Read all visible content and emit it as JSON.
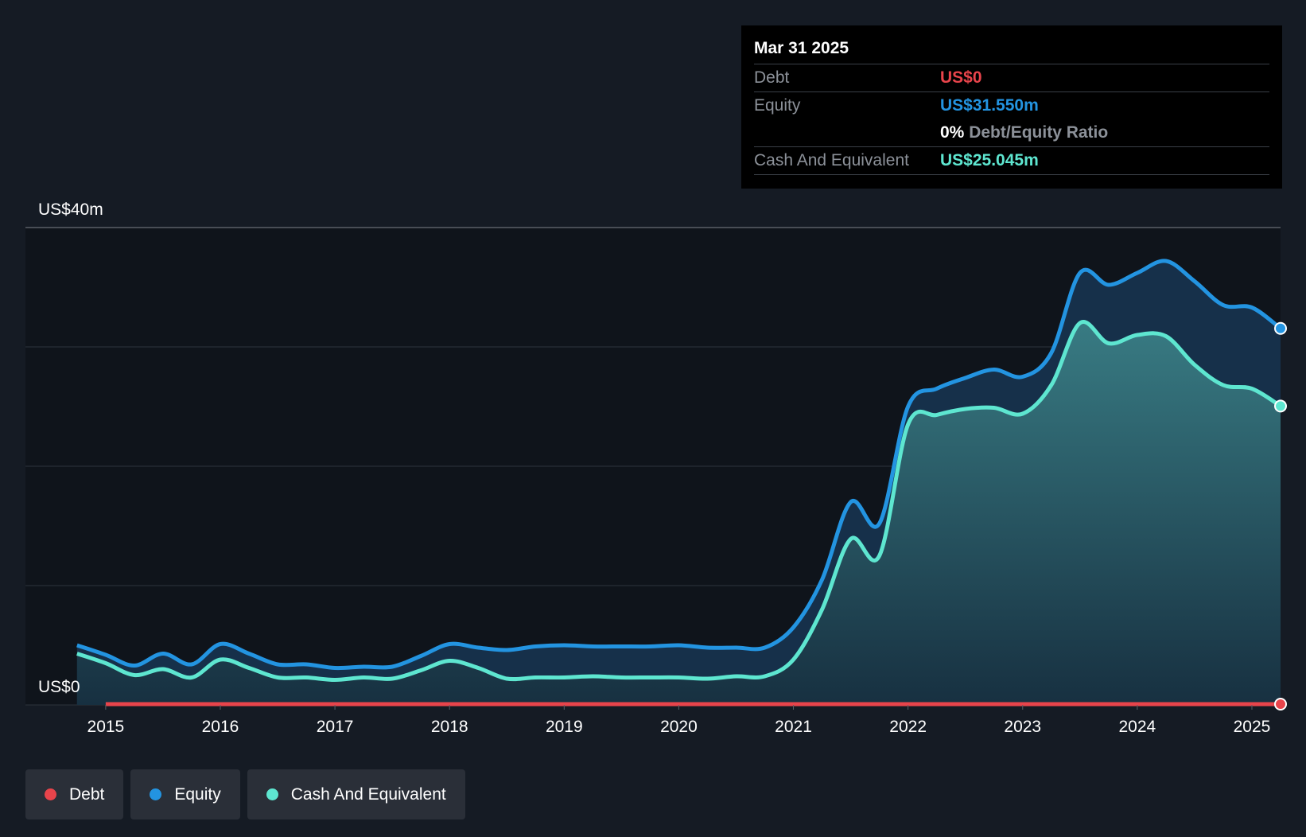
{
  "colors": {
    "debt": "#e8444b",
    "equity": "#2394e1",
    "cash": "#5ee6d0",
    "grid": "#2e343d",
    "plot_bg": "#0f141b"
  },
  "tooltip": {
    "date": "Mar 31 2025",
    "debt_label": "Debt",
    "debt_value": "US$0",
    "equity_label": "Equity",
    "equity_value": "US$31.550m",
    "ratio_value": "0%",
    "ratio_label": "Debt/Equity Ratio",
    "cash_label": "Cash And Equivalent",
    "cash_value": "US$25.045m"
  },
  "legend": [
    {
      "label": "Debt",
      "color": "#e8444b"
    },
    {
      "label": "Equity",
      "color": "#2394e1"
    },
    {
      "label": "Cash And Equivalent",
      "color": "#5ee6d0"
    }
  ],
  "chart_data": {
    "type": "area",
    "y_top_label": "US$40m",
    "y_bottom_label": "US$0",
    "ylim": [
      0,
      40
    ],
    "xlim": [
      2014.3,
      2025.25
    ],
    "x_ticks": [
      "2015",
      "2016",
      "2017",
      "2018",
      "2019",
      "2020",
      "2021",
      "2022",
      "2023",
      "2024",
      "2025"
    ],
    "grid": true,
    "legend_position": "bottom-left",
    "series": [
      {
        "name": "Equity",
        "x": [
          2014.75,
          2015.0,
          2015.25,
          2015.5,
          2015.75,
          2016.0,
          2016.25,
          2016.5,
          2016.75,
          2017.0,
          2017.25,
          2017.5,
          2017.75,
          2018.0,
          2018.25,
          2018.5,
          2018.75,
          2019.0,
          2019.25,
          2019.5,
          2019.75,
          2020.0,
          2020.25,
          2020.5,
          2020.75,
          2021.0,
          2021.25,
          2021.5,
          2021.75,
          2022.0,
          2022.25,
          2022.5,
          2022.75,
          2023.0,
          2023.25,
          2023.5,
          2023.75,
          2024.0,
          2024.25,
          2024.5,
          2024.75,
          2025.0,
          2025.25
        ],
        "values": [
          5.0,
          4.2,
          3.3,
          4.3,
          3.4,
          5.1,
          4.3,
          3.4,
          3.4,
          3.1,
          3.2,
          3.2,
          4.1,
          5.1,
          4.8,
          4.6,
          4.9,
          5.0,
          4.9,
          4.9,
          4.9,
          5.0,
          4.8,
          4.8,
          4.8,
          6.5,
          10.5,
          17.0,
          15.2,
          25.0,
          26.5,
          27.4,
          28.1,
          27.5,
          29.5,
          36.2,
          35.2,
          36.2,
          37.2,
          35.5,
          33.5,
          33.3,
          31.55
        ]
      },
      {
        "name": "Cash And Equivalent",
        "x": [
          2014.75,
          2015.0,
          2015.25,
          2015.5,
          2015.75,
          2016.0,
          2016.25,
          2016.5,
          2016.75,
          2017.0,
          2017.25,
          2017.5,
          2017.75,
          2018.0,
          2018.25,
          2018.5,
          2018.75,
          2019.0,
          2019.25,
          2019.5,
          2019.75,
          2020.0,
          2020.25,
          2020.5,
          2020.75,
          2021.0,
          2021.25,
          2021.5,
          2021.75,
          2022.0,
          2022.25,
          2022.5,
          2022.75,
          2023.0,
          2023.25,
          2023.5,
          2023.75,
          2024.0,
          2024.25,
          2024.5,
          2024.75,
          2025.0,
          2025.25
        ],
        "values": [
          4.3,
          3.5,
          2.5,
          3.0,
          2.3,
          3.8,
          3.1,
          2.3,
          2.3,
          2.1,
          2.3,
          2.2,
          2.9,
          3.7,
          3.1,
          2.2,
          2.3,
          2.3,
          2.4,
          2.3,
          2.3,
          2.3,
          2.2,
          2.4,
          2.4,
          3.8,
          8.0,
          13.9,
          12.5,
          23.5,
          24.3,
          24.8,
          24.9,
          24.4,
          26.8,
          32.0,
          30.3,
          31.0,
          30.9,
          28.5,
          26.8,
          26.5,
          25.045
        ]
      },
      {
        "name": "Debt",
        "x": [
          2015.0,
          2025.25
        ],
        "values": [
          0,
          0
        ]
      }
    ]
  }
}
